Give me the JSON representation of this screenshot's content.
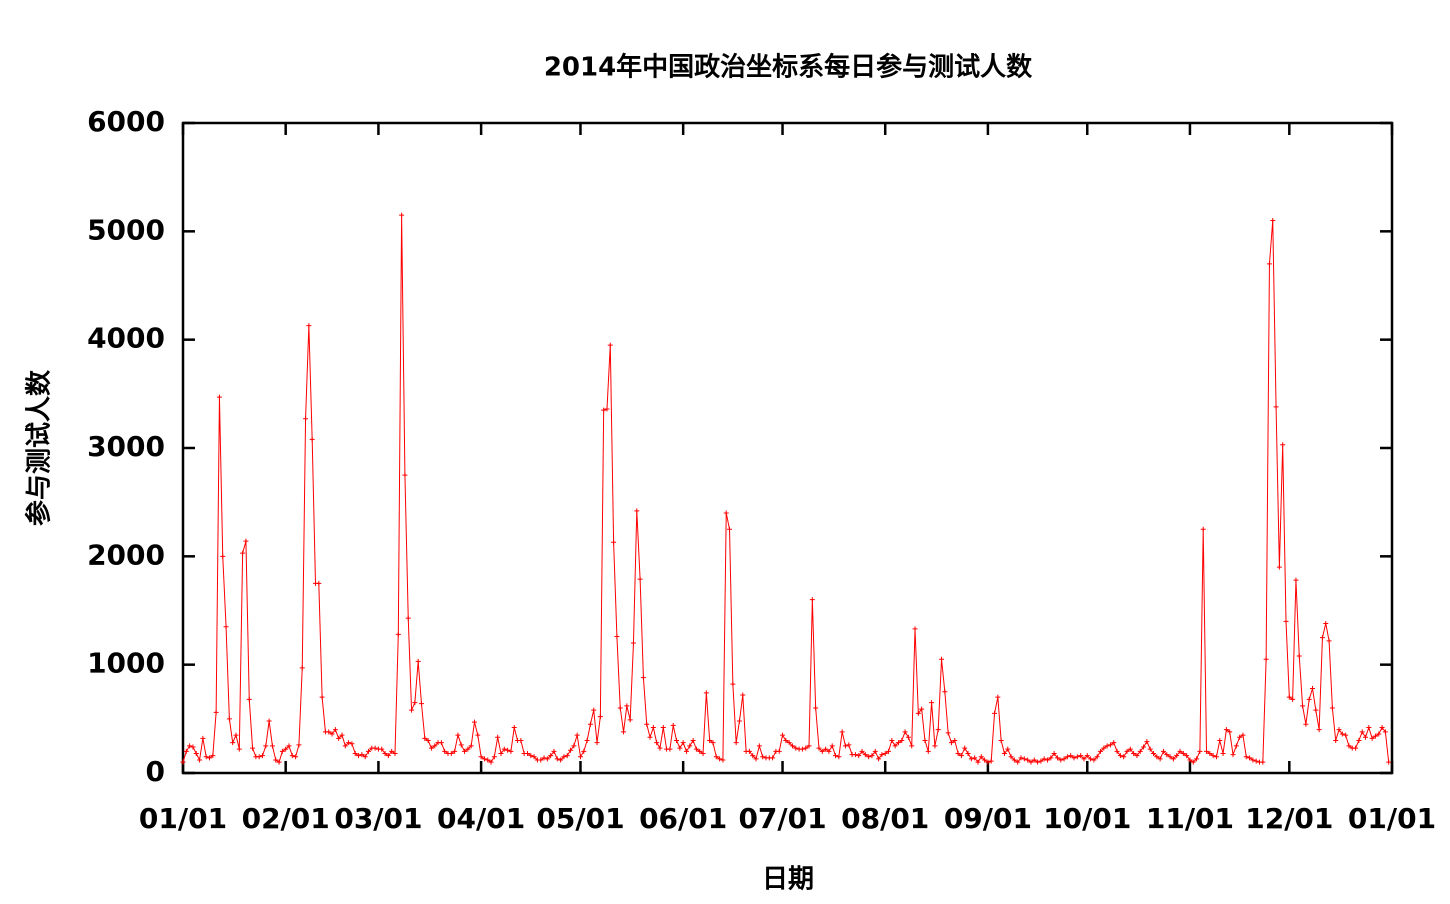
{
  "chart_data": {
    "type": "line",
    "title": "2014年中国政治坐标系每日参与测试人数",
    "xlabel": "日期",
    "ylabel": "参与测试人数",
    "xlim": [
      0,
      365
    ],
    "xticks": [
      {
        "value": 0,
        "label": "01/01"
      },
      {
        "value": 31,
        "label": "02/01"
      },
      {
        "value": 59,
        "label": "03/01"
      },
      {
        "value": 90,
        "label": "04/01"
      },
      {
        "value": 120,
        "label": "05/01"
      },
      {
        "value": 151,
        "label": "06/01"
      },
      {
        "value": 181,
        "label": "07/01"
      },
      {
        "value": 212,
        "label": "08/01"
      },
      {
        "value": 243,
        "label": "09/01"
      },
      {
        "value": 273,
        "label": "10/01"
      },
      {
        "value": 304,
        "label": "11/01"
      },
      {
        "value": 334,
        "label": "12/01"
      },
      {
        "value": 365,
        "label": "01/01"
      }
    ],
    "ylim": [
      0,
      6000
    ],
    "yticks": [
      0,
      1000,
      2000,
      3000,
      4000,
      5000,
      6000
    ],
    "grid": false,
    "color": "#ff0000",
    "x": [
      0,
      1,
      2,
      3,
      4,
      5,
      6,
      7,
      8,
      9,
      10,
      11,
      12,
      13,
      14,
      15,
      16,
      17,
      18,
      19,
      20,
      21,
      22,
      23,
      24,
      25,
      26,
      27,
      28,
      29,
      30,
      31,
      32,
      33,
      34,
      35,
      36,
      37,
      38,
      39,
      40,
      41,
      42,
      43,
      44,
      45,
      46,
      47,
      48,
      49,
      50,
      51,
      52,
      53,
      54,
      55,
      56,
      57,
      58,
      59,
      60,
      61,
      62,
      63,
      64,
      65,
      66,
      67,
      68,
      69,
      70,
      71,
      72,
      73,
      74,
      75,
      76,
      77,
      78,
      79,
      80,
      81,
      82,
      83,
      84,
      85,
      86,
      87,
      88,
      89,
      90,
      91,
      92,
      93,
      94,
      95,
      96,
      97,
      98,
      99,
      100,
      101,
      102,
      103,
      104,
      105,
      106,
      107,
      108,
      109,
      110,
      111,
      112,
      113,
      114,
      115,
      116,
      117,
      118,
      119,
      120,
      121,
      122,
      123,
      124,
      125,
      126,
      127,
      128,
      129,
      130,
      131,
      132,
      133,
      134,
      135,
      136,
      137,
      138,
      139,
      140,
      141,
      142,
      143,
      144,
      145,
      146,
      147,
      148,
      149,
      150,
      151,
      152,
      153,
      154,
      155,
      156,
      157,
      158,
      159,
      160,
      161,
      162,
      163,
      164,
      165,
      166,
      167,
      168,
      169,
      170,
      171,
      172,
      173,
      174,
      175,
      176,
      177,
      178,
      179,
      180,
      181,
      182,
      183,
      184,
      185,
      186,
      187,
      188,
      189,
      190,
      191,
      192,
      193,
      194,
      195,
      196,
      197,
      198,
      199,
      200,
      201,
      202,
      203,
      204,
      205,
      206,
      207,
      208,
      209,
      210,
      211,
      212,
      213,
      214,
      215,
      216,
      217,
      218,
      219,
      220,
      221,
      222,
      223,
      224,
      225,
      226,
      227,
      228,
      229,
      230,
      231,
      232,
      233,
      234,
      235,
      236,
      237,
      238,
      239,
      240,
      241,
      242,
      243,
      244,
      245,
      246,
      247,
      248,
      249,
      250,
      251,
      252,
      253,
      254,
      255,
      256,
      257,
      258,
      259,
      260,
      261,
      262,
      263,
      264,
      265,
      266,
      267,
      268,
      269,
      270,
      271,
      272,
      273,
      274,
      275,
      276,
      277,
      278,
      279,
      280,
      281,
      282,
      283,
      284,
      285,
      286,
      287,
      288,
      289,
      290,
      291,
      292,
      293,
      294,
      295,
      296,
      297,
      298,
      299,
      300,
      301,
      302,
      303,
      304,
      305,
      306,
      307,
      308,
      309,
      310,
      311,
      312,
      313,
      314,
      315,
      316,
      317,
      318,
      319,
      320,
      321,
      322,
      323,
      324,
      325,
      326,
      327,
      328,
      329,
      330,
      331,
      332,
      333,
      334,
      335,
      336,
      337,
      338,
      339,
      340,
      341,
      342,
      343,
      344,
      345,
      346,
      347,
      348,
      349,
      350,
      351,
      352,
      353,
      354,
      355,
      356,
      357,
      358,
      359,
      360,
      361,
      362,
      363,
      364
    ],
    "values": [
      100,
      200,
      250,
      240,
      180,
      120,
      320,
      150,
      140,
      160,
      560,
      3470,
      2000,
      1350,
      500,
      280,
      350,
      220,
      2030,
      2140,
      680,
      230,
      150,
      150,
      160,
      250,
      480,
      250,
      120,
      100,
      200,
      220,
      250,
      160,
      150,
      260,
      970,
      3270,
      4130,
      3080,
      1750,
      1750,
      700,
      380,
      380,
      360,
      400,
      320,
      350,
      250,
      280,
      270,
      180,
      160,
      170,
      150,
      200,
      230,
      230,
      220,
      220,
      180,
      160,
      200,
      180,
      1280,
      5150,
      2750,
      1430,
      580,
      650,
      1030,
      640,
      320,
      300,
      230,
      250,
      280,
      280,
      200,
      180,
      180,
      200,
      350,
      260,
      200,
      220,
      250,
      470,
      350,
      150,
      130,
      120,
      100,
      150,
      330,
      180,
      220,
      210,
      200,
      420,
      300,
      300,
      180,
      180,
      160,
      150,
      120,
      120,
      140,
      130,
      160,
      200,
      130,
      120,
      150,
      160,
      210,
      250,
      350,
      150,
      200,
      300,
      450,
      580,
      280,
      520,
      3350,
      3360,
      3950,
      2130,
      1260,
      600,
      380,
      620,
      490,
      1200,
      2420,
      1790,
      880,
      450,
      330,
      420,
      280,
      230,
      420,
      220,
      220,
      440,
      300,
      230,
      280,
      200,
      250,
      300,
      220,
      200,
      180,
      740,
      300,
      280,
      150,
      130,
      120,
      2400,
      2250,
      820,
      280,
      480,
      720,
      200,
      200,
      160,
      130,
      250,
      150,
      140,
      140,
      140,
      200,
      200,
      350,
      300,
      280,
      250,
      230,
      220,
      220,
      230,
      250,
      1600,
      600,
      230,
      200,
      220,
      200,
      250,
      160,
      150,
      380,
      250,
      260,
      170,
      170,
      160,
      200,
      170,
      150,
      160,
      200,
      130,
      170,
      180,
      200,
      300,
      250,
      280,
      300,
      380,
      330,
      250,
      1330,
      550,
      590,
      300,
      200,
      650,
      250,
      400,
      1050,
      750,
      370,
      280,
      300,
      180,
      160,
      230,
      180,
      130,
      140,
      100,
      150,
      120,
      100,
      110,
      550,
      700,
      300,
      180,
      220,
      150,
      120,
      100,
      140,
      130,
      120,
      100,
      120,
      100,
      110,
      130,
      120,
      140,
      180,
      140,
      120,
      130,
      150,
      160,
      140,
      150,
      160,
      130,
      160,
      130,
      120,
      150,
      200,
      230,
      250,
      260,
      280,
      200,
      160,
      150,
      200,
      220,
      180,
      160,
      200,
      240,
      290,
      220,
      180,
      150,
      130,
      200,
      170,
      150,
      130,
      160,
      200,
      180,
      160,
      120,
      100,
      130,
      200,
      2250,
      200,
      180,
      160,
      150,
      300,
      180,
      400,
      380,
      170,
      250,
      330,
      350,
      150,
      140,
      120,
      110,
      100,
      100,
      1050,
      4700,
      5100,
      3380,
      1900,
      3030,
      1400,
      700,
      680,
      1780,
      1080,
      620,
      450,
      680,
      780,
      580,
      400,
      1250,
      1380,
      1220,
      600,
      300,
      400,
      360,
      350,
      250,
      230,
      230,
      300,
      380,
      330,
      420,
      320,
      340,
      360,
      420,
      380,
      100
    ]
  }
}
